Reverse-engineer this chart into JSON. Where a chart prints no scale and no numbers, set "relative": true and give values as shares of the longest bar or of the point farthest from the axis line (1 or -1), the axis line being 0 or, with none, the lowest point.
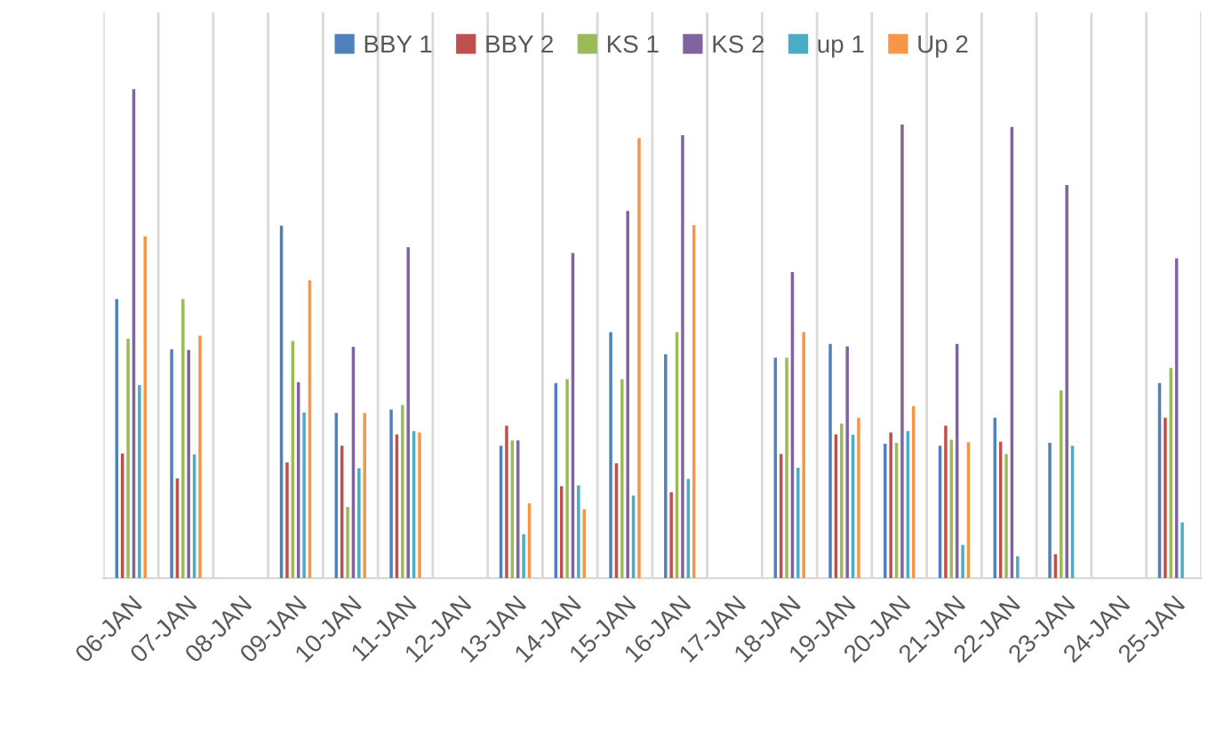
{
  "chart_data": {
    "type": "bar",
    "relative": true,
    "grid": "x",
    "legend": "top",
    "categories": [
      "06-JAN",
      "07-JAN",
      "08-JAN",
      "09-JAN",
      "10-JAN",
      "11-JAN",
      "12-JAN",
      "13-JAN",
      "14-JAN",
      "15-JAN",
      "16-JAN",
      "17-JAN",
      "18-JAN",
      "19-JAN",
      "20-JAN",
      "21-JAN",
      "22-JAN",
      "23-JAN",
      "24-JAN",
      "25-JAN"
    ],
    "series": [
      {
        "name": "BBY 1",
        "color": "#4f81bd",
        "values": [
          0.571,
          0.468,
          null,
          0.721,
          0.338,
          0.345,
          null,
          0.271,
          0.399,
          0.503,
          0.458,
          null,
          0.451,
          0.479,
          0.275,
          0.271,
          0.328,
          0.277,
          null,
          0.399
        ]
      },
      {
        "name": "BBY 2",
        "color": "#c0504d",
        "values": [
          0.255,
          0.204,
          null,
          0.237,
          0.271,
          0.294,
          null,
          0.312,
          0.188,
          0.235,
          0.176,
          null,
          0.254,
          0.294,
          0.298,
          0.312,
          0.279,
          0.049,
          null,
          0.328
        ]
      },
      {
        "name": "KS 1",
        "color": "#9bbb59",
        "values": [
          0.49,
          0.571,
          null,
          0.485,
          0.146,
          0.354,
          null,
          0.282,
          0.407,
          0.407,
          0.503,
          null,
          0.451,
          0.316,
          0.277,
          0.283,
          0.254,
          0.384,
          null,
          0.43
        ]
      },
      {
        "name": "KS 2",
        "color": "#8064a2",
        "values": [
          1,
          0.467,
          null,
          0.401,
          0.473,
          0.677,
          null,
          0.282,
          0.665,
          0.751,
          0.906,
          null,
          0.626,
          0.474,
          0.928,
          0.479,
          0.923,
          0.804,
          null,
          0.654
        ]
      },
      {
        "name": "up 1",
        "color": "#4bacc6",
        "values": [
          0.395,
          0.253,
          null,
          0.339,
          0.225,
          0.301,
          null,
          0.09,
          0.19,
          0.169,
          0.203,
          null,
          0.226,
          0.293,
          0.301,
          0.068,
          0.045,
          0.271,
          null,
          0.114
        ]
      },
      {
        "name": "Up 2",
        "color": "#f79646",
        "values": [
          0.699,
          0.496,
          null,
          0.609,
          0.338,
          0.298,
          null,
          0.153,
          0.141,
          0.9,
          0.722,
          null,
          0.503,
          0.328,
          0.352,
          0.278,
          null,
          null,
          null,
          null
        ]
      }
    ]
  }
}
